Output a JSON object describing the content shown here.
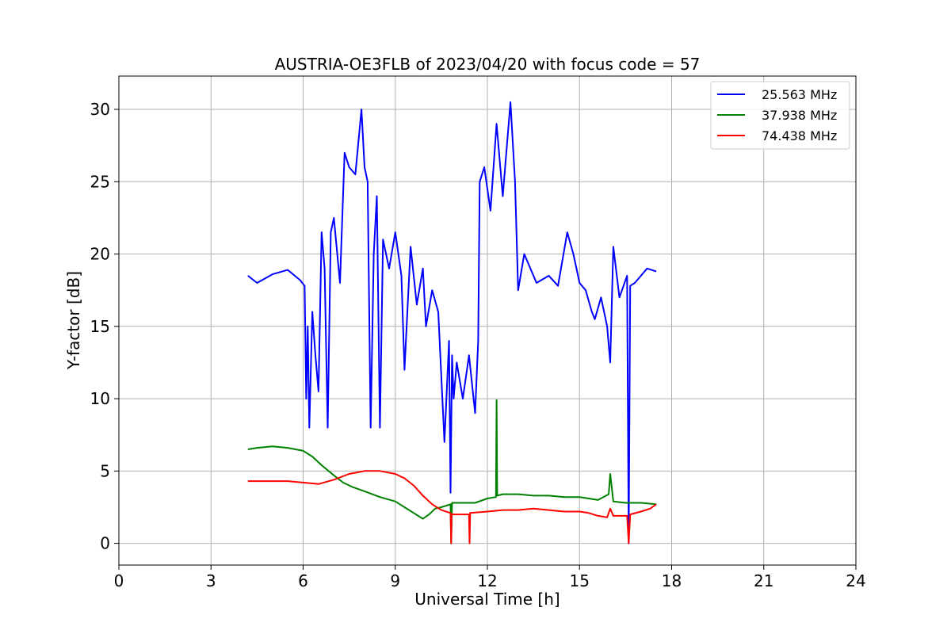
{
  "chart_data": {
    "type": "line",
    "title": "AUSTRIA-OE3FLB of 2023/04/20 with focus code = 57",
    "xlabel": "Universal Time [h]",
    "ylabel": "Y-factor [dB]",
    "xlim": [
      0,
      24
    ],
    "ylim": [
      -1.5,
      32.3
    ],
    "xticks": [
      0,
      3,
      6,
      9,
      12,
      15,
      18,
      21,
      24
    ],
    "yticks": [
      0,
      5,
      10,
      15,
      20,
      25,
      30
    ],
    "grid": true,
    "legend_position": "top-right",
    "colors": {
      "series_1": "#0000ff",
      "series_2": "#008000",
      "series_3": "#ff0000",
      "grid": "#b0b0b0"
    },
    "series": [
      {
        "name": "25.563 MHz",
        "color": "#0000ff",
        "x": [
          4.2,
          4.5,
          5.0,
          5.5,
          5.9,
          6.05,
          6.1,
          6.15,
          6.2,
          6.3,
          6.4,
          6.5,
          6.6,
          6.7,
          6.8,
          6.9,
          7.0,
          7.2,
          7.35,
          7.5,
          7.7,
          7.9,
          8.0,
          8.1,
          8.2,
          8.3,
          8.4,
          8.5,
          8.6,
          8.8,
          9.0,
          9.2,
          9.3,
          9.5,
          9.7,
          9.9,
          10.0,
          10.2,
          10.4,
          10.6,
          10.75,
          10.8,
          10.85,
          10.9,
          11.0,
          11.2,
          11.4,
          11.6,
          11.7,
          11.75,
          11.9,
          12.1,
          12.3,
          12.5,
          12.75,
          12.9,
          13.0,
          13.2,
          13.6,
          14.0,
          14.3,
          14.6,
          14.8,
          15.0,
          15.2,
          15.4,
          15.5,
          15.7,
          15.9,
          16.0,
          16.1,
          16.3,
          16.55,
          16.6,
          16.65,
          16.8,
          17.0,
          17.2,
          17.5
        ],
        "values": [
          18.5,
          18.0,
          18.6,
          18.9,
          18.2,
          17.8,
          10.0,
          15.0,
          8.0,
          16.0,
          13.0,
          10.5,
          21.5,
          19.0,
          8.0,
          21.5,
          22.5,
          18.0,
          27.0,
          26.0,
          25.5,
          30.0,
          26.0,
          25.0,
          8.0,
          20.0,
          24.0,
          8.0,
          21.0,
          19.0,
          21.5,
          18.5,
          12.0,
          20.5,
          16.5,
          19.0,
          15.0,
          17.5,
          16.0,
          7.0,
          14.0,
          3.5,
          13.0,
          10.0,
          12.5,
          10.0,
          13.0,
          9.0,
          14.0,
          25.0,
          26.0,
          23.0,
          29.0,
          24.0,
          30.5,
          25.0,
          17.5,
          20.0,
          18.0,
          18.5,
          17.8,
          21.5,
          20.0,
          18.0,
          17.5,
          16.0,
          15.5,
          17.0,
          15.0,
          12.5,
          20.5,
          17.0,
          18.5,
          0.0,
          17.8,
          18.0,
          18.5,
          19.0,
          18.8
        ]
      },
      {
        "name": "37.938 MHz",
        "color": "#008000",
        "x": [
          4.2,
          4.5,
          5.0,
          5.5,
          6.0,
          6.3,
          6.6,
          7.0,
          7.3,
          7.6,
          8.0,
          8.5,
          9.0,
          9.3,
          9.6,
          9.9,
          10.1,
          10.3,
          10.5,
          10.8,
          10.82,
          10.85,
          11.2,
          11.6,
          12.0,
          12.28,
          12.3,
          12.32,
          12.5,
          13.0,
          13.5,
          14.0,
          14.5,
          15.0,
          15.3,
          15.6,
          15.95,
          16.0,
          16.1,
          16.5,
          17.0,
          17.5
        ],
        "values": [
          6.5,
          6.6,
          6.7,
          6.6,
          6.4,
          6.0,
          5.4,
          4.7,
          4.2,
          3.9,
          3.6,
          3.2,
          2.9,
          2.5,
          2.1,
          1.7,
          2.0,
          2.4,
          2.5,
          2.7,
          0.0,
          2.8,
          2.8,
          2.8,
          3.1,
          3.2,
          9.9,
          3.3,
          3.4,
          3.4,
          3.3,
          3.3,
          3.2,
          3.2,
          3.1,
          3.0,
          3.4,
          4.8,
          2.9,
          2.8,
          2.8,
          2.7
        ]
      },
      {
        "name": "74.438 MHz",
        "color": "#ff0000",
        "x": [
          4.2,
          4.5,
          5.0,
          5.5,
          6.0,
          6.5,
          7.0,
          7.5,
          8.0,
          8.5,
          9.0,
          9.3,
          9.6,
          9.9,
          10.2,
          10.5,
          10.8,
          10.82,
          10.84,
          11.2,
          11.4,
          11.42,
          11.44,
          12.0,
          12.5,
          13.0,
          13.5,
          14.0,
          14.5,
          15.0,
          15.3,
          15.6,
          15.9,
          16.0,
          16.1,
          16.3,
          16.55,
          16.6,
          16.65,
          17.0,
          17.3,
          17.5
        ],
        "values": [
          4.3,
          4.3,
          4.3,
          4.3,
          4.2,
          4.1,
          4.4,
          4.8,
          5.0,
          5.0,
          4.8,
          4.5,
          4.0,
          3.3,
          2.7,
          2.3,
          2.1,
          0.0,
          2.0,
          2.0,
          2.0,
          0.0,
          2.1,
          2.2,
          2.3,
          2.3,
          2.4,
          2.3,
          2.2,
          2.2,
          2.1,
          1.9,
          1.8,
          2.4,
          1.9,
          1.9,
          1.9,
          0.0,
          2.0,
          2.2,
          2.4,
          2.7
        ]
      }
    ]
  }
}
